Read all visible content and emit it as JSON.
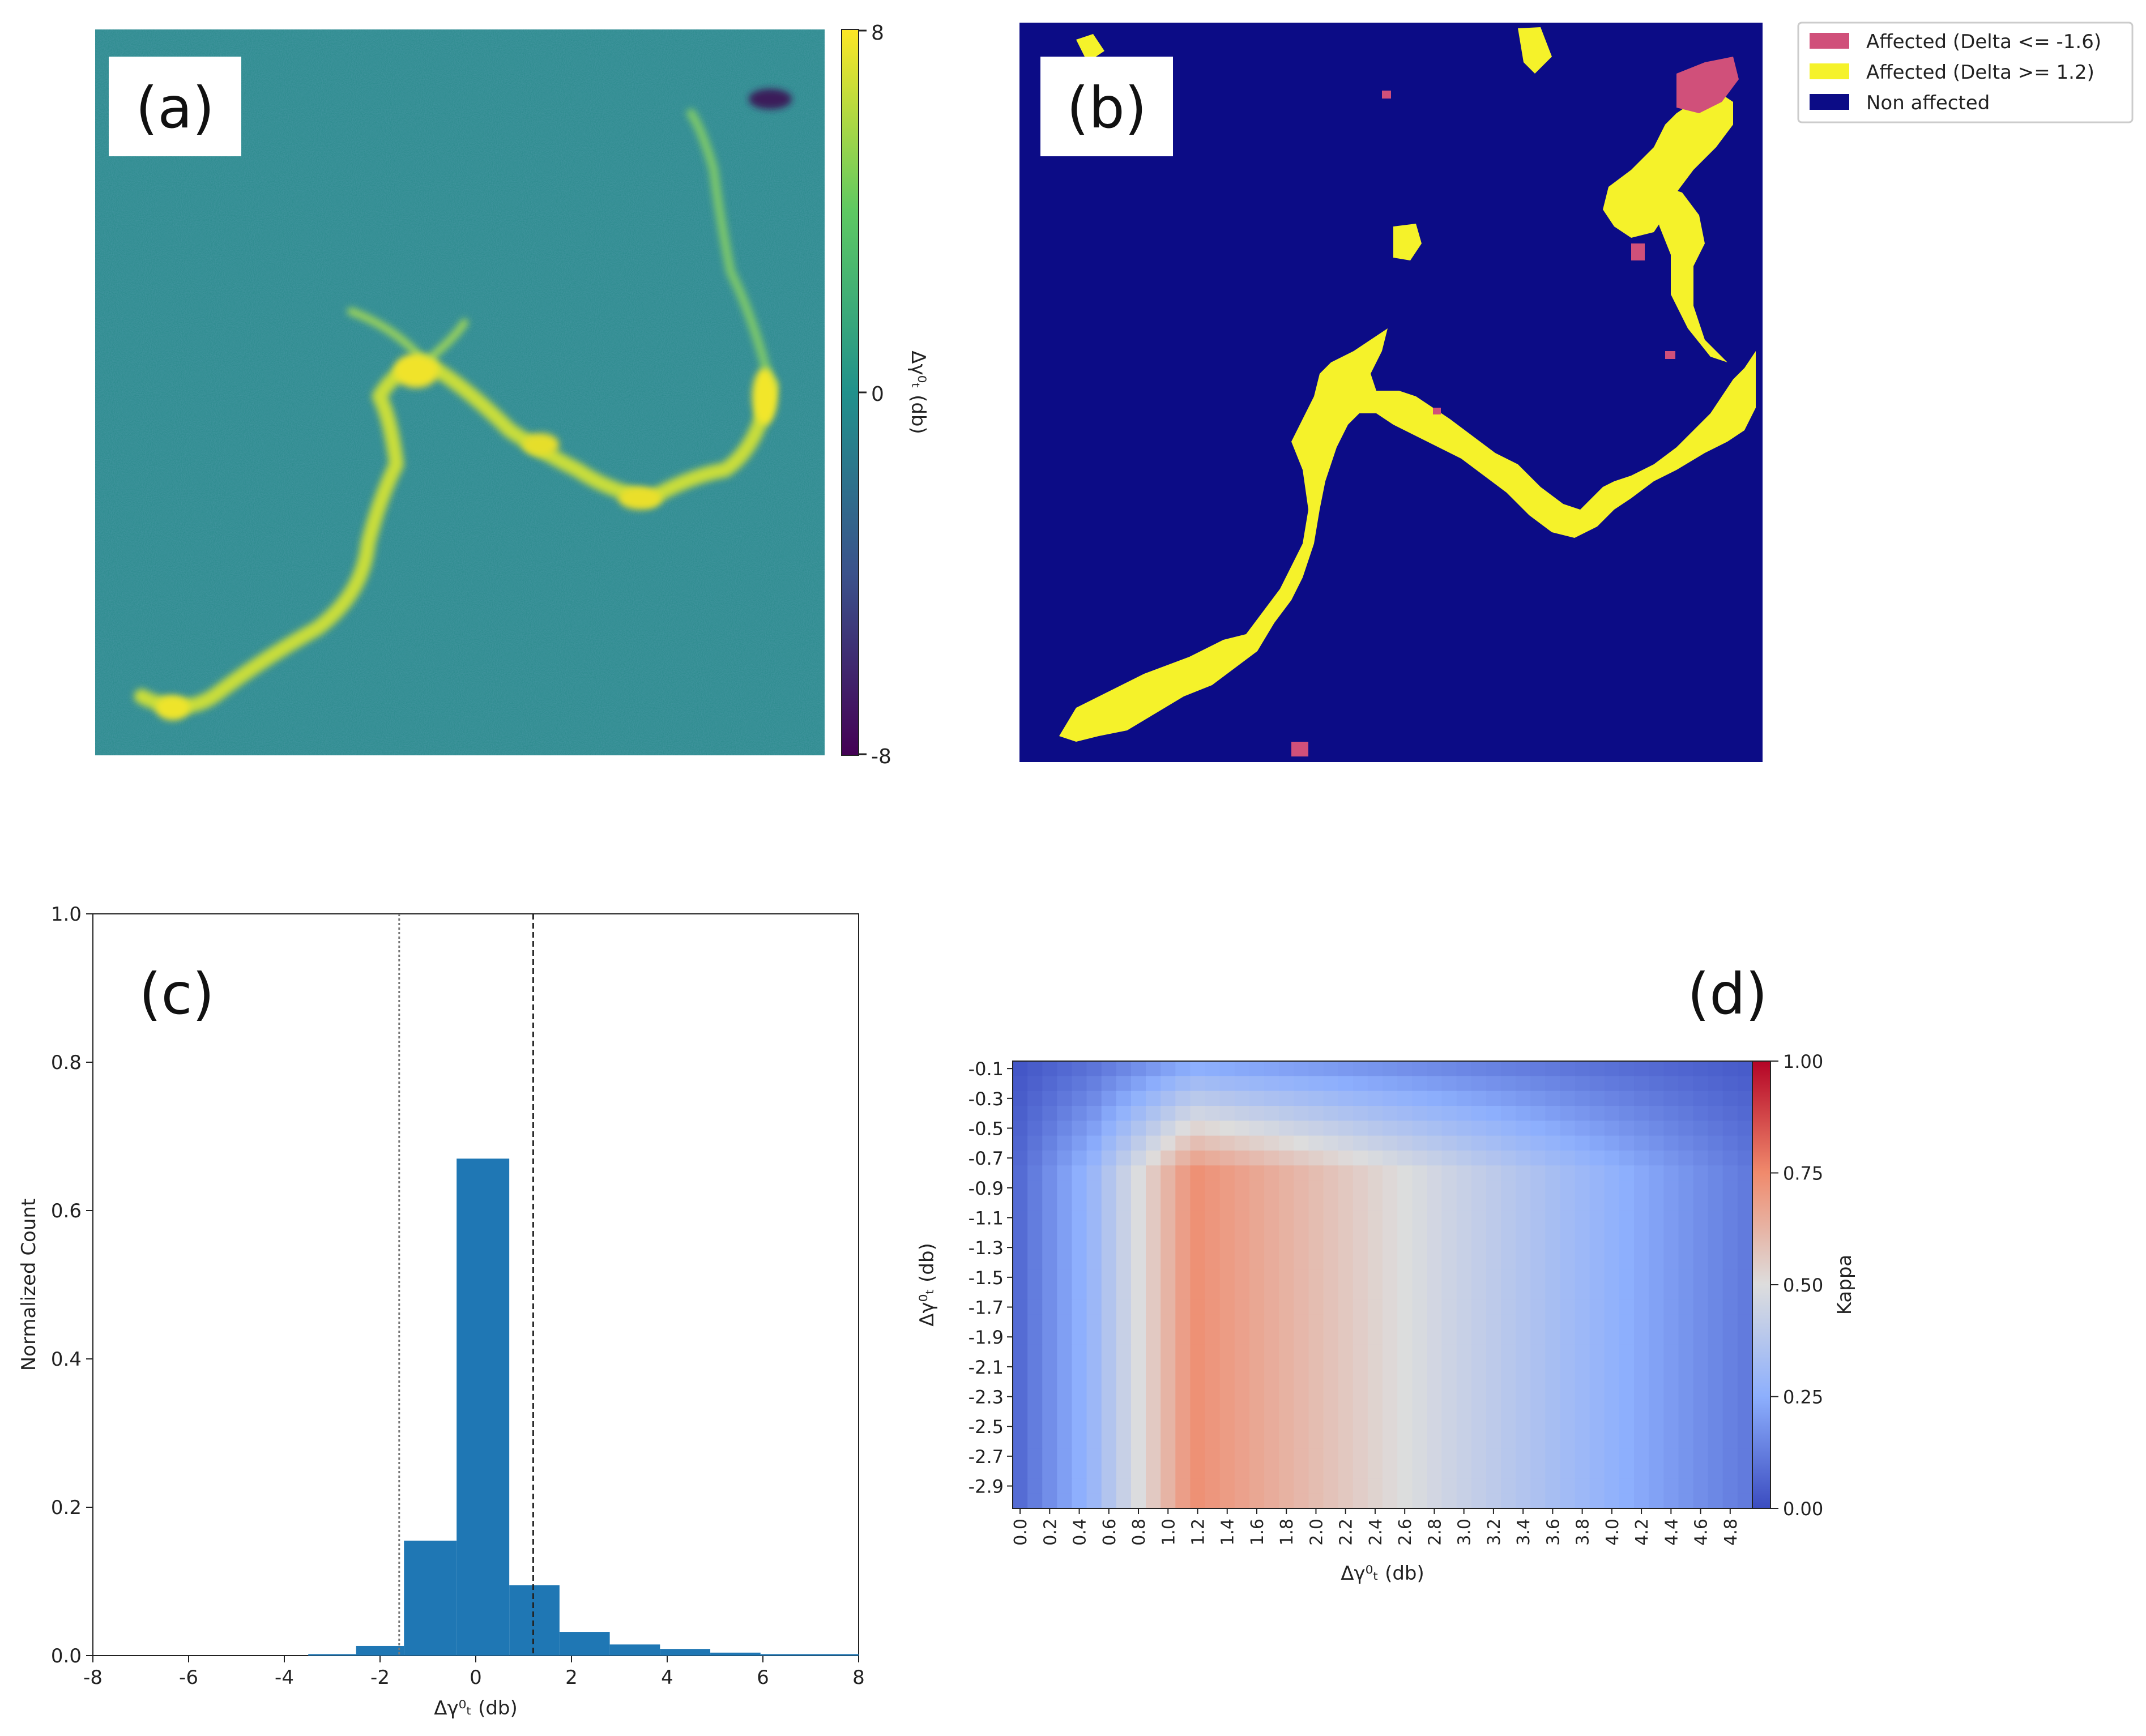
{
  "colors": {
    "ink": "#222222",
    "panel_a_bg": "#2b8c8c",
    "bar": "#1f77b4",
    "affected_neg": "#d0507a",
    "affected_pos": "#f5f22a",
    "non_affected": "#0c0c86",
    "kappa_low": "#3b4cc0",
    "kappa_mid": "#dddddd",
    "kappa_high": "#b40426"
  },
  "panel_a": {
    "label": "(a)",
    "colorbar": {
      "max_label": "8",
      "mid_label": "0",
      "min_label": "-8",
      "title": "Δγ⁰ₜ (db)"
    }
  },
  "panel_b": {
    "label": "(b)",
    "legend": [
      {
        "text": "Affected (Delta <= -1.6)",
        "color": "#d0507a"
      },
      {
        "text": "Affected (Delta >= 1.2)",
        "color": "#f5f22a"
      },
      {
        "text": "Non affected",
        "color": "#0c0c86"
      }
    ]
  },
  "panel_c": {
    "label": "(c)"
  },
  "panel_d": {
    "label": "(d)"
  },
  "chart_data": [
    {
      "type": "bar",
      "panel": "(c)",
      "title": "",
      "xlabel": "Δγ⁰ₜ (db)",
      "ylabel": "Normalized Count",
      "xlim": [
        -8,
        8
      ],
      "ylim": [
        0,
        1.0
      ],
      "xticks": [
        -8,
        -6,
        -4,
        -2,
        0,
        2,
        4,
        6,
        8
      ],
      "yticks": [
        "0.0",
        "0.2",
        "0.4",
        "0.6",
        "0.8",
        "1.0"
      ],
      "bins": [
        {
          "x0": -3.5,
          "x1": -2.5,
          "value": 0.002
        },
        {
          "x0": -2.5,
          "x1": -1.5,
          "value": 0.013
        },
        {
          "x0": -1.5,
          "x1": -0.4,
          "value": 0.155
        },
        {
          "x0": -0.4,
          "x1": 0.7,
          "value": 0.67
        },
        {
          "x0": 0.7,
          "x1": 1.75,
          "value": 0.095
        },
        {
          "x0": 1.75,
          "x1": 2.8,
          "value": 0.032
        },
        {
          "x0": 2.8,
          "x1": 3.85,
          "value": 0.015
        },
        {
          "x0": 3.85,
          "x1": 4.9,
          "value": 0.009
        },
        {
          "x0": 4.9,
          "x1": 5.95,
          "value": 0.004
        },
        {
          "x0": 5.95,
          "x1": 8.0,
          "value": 0.002
        }
      ],
      "thresholds": [
        {
          "x": -1.6,
          "style": "dotted"
        },
        {
          "x": 1.2,
          "style": "dashed"
        }
      ]
    },
    {
      "type": "heatmap",
      "panel": "(d)",
      "xlabel": "Δγ⁰ₜ (db)",
      "ylabel": "Δγ⁰ₜ (db)",
      "x_tick_labels": [
        "0.0",
        "0.2",
        "0.4",
        "0.6",
        "0.8",
        "1.0",
        "1.2",
        "1.4",
        "1.6",
        "1.8",
        "2.0",
        "2.2",
        "2.4",
        "2.6",
        "2.8",
        "3.0",
        "3.2",
        "3.4",
        "3.6",
        "3.8",
        "4.0",
        "4.2",
        "4.4",
        "4.6",
        "4.8"
      ],
      "y_tick_labels": [
        "-0.1",
        "-0.3",
        "-0.5",
        "-0.7",
        "-0.9",
        "-1.1",
        "-1.3",
        "-1.5",
        "-1.7",
        "-1.9",
        "-2.1",
        "-2.3",
        "-2.5",
        "-2.7",
        "-2.9"
      ],
      "x_range": [
        0.0,
        4.9
      ],
      "y_range": [
        -0.1,
        -2.9
      ],
      "colorbar": {
        "label": "Kappa",
        "ticks": [
          "1.00",
          "0.75",
          "0.50",
          "0.25",
          "0.00"
        ],
        "range": [
          0,
          1
        ]
      },
      "peak": {
        "x": 1.2,
        "y": -2.0,
        "kappa": 0.66
      }
    }
  ]
}
